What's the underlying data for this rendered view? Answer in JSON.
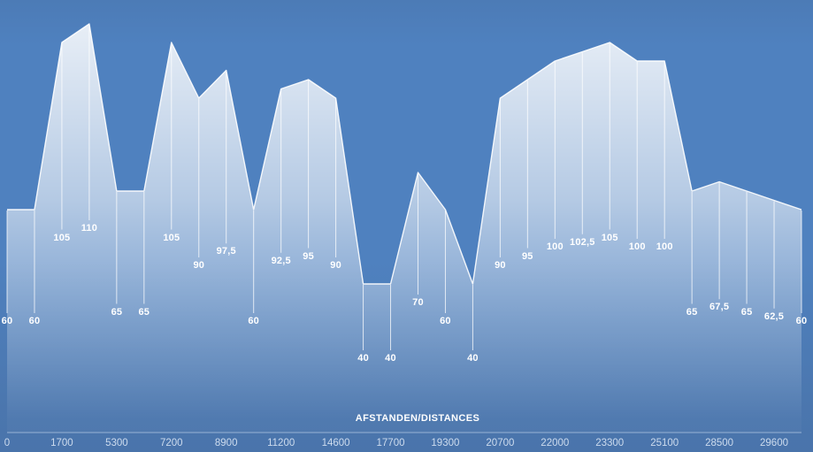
{
  "chart_data": {
    "type": "area",
    "title": "",
    "xlabel": "AFSTANDEN/DISTANCES",
    "ylabel": "",
    "legend": "none",
    "grid": false,
    "ylim": [
      0,
      115
    ],
    "x_label_interval": 2,
    "categories": [
      "0",
      "",
      "1700",
      "",
      "5300",
      "",
      "7200",
      "",
      "8900",
      "",
      "11200",
      "",
      "14600",
      "",
      "17700",
      "",
      "19300",
      "",
      "20700",
      "",
      "22000",
      "",
      "23300",
      "",
      "25100",
      "",
      "28500",
      "",
      "29600",
      ""
    ],
    "values": [
      60,
      60,
      105,
      110,
      65,
      65,
      105,
      90,
      97.5,
      60,
      92.5,
      95,
      90,
      40,
      40,
      70,
      60,
      40,
      90,
      95,
      100,
      102.5,
      105,
      100,
      100,
      65,
      67.5,
      65,
      62.5,
      60
    ],
    "value_labels": [
      "60",
      "60",
      "105",
      "110",
      "65",
      "65",
      "105",
      "90",
      "97,5",
      "60",
      "92,5",
      "95",
      "90",
      "40",
      "40",
      "70",
      "60",
      "40",
      "90",
      "95",
      "100",
      "102,5",
      "105",
      "100",
      "100",
      "65",
      "67,5",
      "65",
      "62,5",
      "60"
    ],
    "colors": {
      "background_top": "#4c7bb6",
      "background_mid": "#4f81bf",
      "background_bottom": "#4a74ab",
      "area_fill_top": "#ffffff",
      "series_line": "#ffffff",
      "drop_line": "#ffffff",
      "data_label_color": "#ffffff",
      "tick_label_color": "#ccdbee",
      "axis_line_color": "#d7e4f5"
    }
  }
}
